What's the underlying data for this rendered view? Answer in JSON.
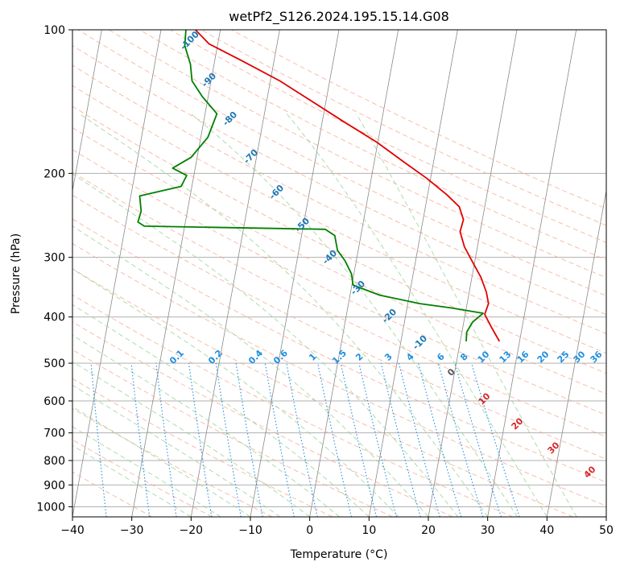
{
  "chart_data": {
    "type": "line",
    "title": "wetPf2_S126.2024.195.15.14.G08",
    "xlabel": "Temperature (°C)",
    "ylabel": "Pressure (hPa)",
    "x_scale": "skew-T (skewed temperature axis)",
    "y_scale": "log",
    "xlim": [
      -40,
      50
    ],
    "ylim": [
      1050,
      100
    ],
    "x_ticks": [
      -40,
      -30,
      -20,
      -10,
      0,
      10,
      20,
      30,
      40,
      50
    ],
    "y_ticks": [
      1000,
      900,
      800,
      700,
      600,
      500,
      400,
      300,
      200,
      100
    ],
    "grid": true,
    "colors": {
      "temperature": "#e00000",
      "dewpoint": "#008000",
      "isotherm": "#8a8a8a",
      "dry_adiabat": "#f6a58a",
      "moist_adiabat": "#8fcf8f",
      "mixing_ratio": "#1f8fe0",
      "isotherm_label": "#1f77b4",
      "zero_label": "#555555",
      "lower_label": "#d62728"
    },
    "series": [
      {
        "key": "temperature",
        "points": [
          [
            26.6,
            450
          ],
          [
            24.8,
            420
          ],
          [
            23.3,
            395
          ],
          [
            23.6,
            375
          ],
          [
            22.9,
            355
          ],
          [
            21.5,
            330
          ],
          [
            19.5,
            305
          ],
          [
            17.8,
            285
          ],
          [
            16.6,
            265
          ],
          [
            16.8,
            250
          ],
          [
            15.7,
            235
          ],
          [
            13.3,
            222
          ],
          [
            9.4,
            205
          ],
          [
            5.2,
            190
          ],
          [
            -0.2,
            172
          ],
          [
            -6.7,
            155
          ],
          [
            -12.9,
            140
          ],
          [
            -18.4,
            128
          ],
          [
            -25.5,
            116
          ],
          [
            -31.5,
            107
          ],
          [
            -34.2,
            100
          ]
        ]
      },
      {
        "key": "dewpoint",
        "points": [
          [
            21.0,
            450
          ],
          [
            20.8,
            430
          ],
          [
            21.5,
            410
          ],
          [
            23.0,
            393
          ],
          [
            17.5,
            383
          ],
          [
            12.0,
            375
          ],
          [
            5.0,
            360
          ],
          [
            0.2,
            343
          ],
          [
            -0.4,
            325
          ],
          [
            -1.9,
            305
          ],
          [
            -3.5,
            290
          ],
          [
            -4.4,
            270
          ],
          [
            -6.2,
            262
          ],
          [
            -36.8,
            258
          ],
          [
            -38.0,
            253
          ],
          [
            -37.8,
            240
          ],
          [
            -38.5,
            223
          ],
          [
            -31.8,
            213
          ],
          [
            -31.2,
            202
          ],
          [
            -33.8,
            195
          ],
          [
            -31.0,
            185
          ],
          [
            -28.8,
            168
          ],
          [
            -28.0,
            150
          ],
          [
            -31.0,
            138
          ],
          [
            -33.2,
            128
          ],
          [
            -34.0,
            118
          ],
          [
            -35.5,
            108
          ],
          [
            -35.8,
            100
          ]
        ]
      }
    ],
    "isotherm_labels": [
      "-100",
      "-90",
      "-80",
      "-70",
      "-60",
      "-50",
      "-40",
      "-30",
      "-20",
      "-10"
    ],
    "zero_label": "0",
    "lower_labels": [
      "10",
      "20",
      "30",
      "40"
    ],
    "mixing_ratio_labels": [
      "0.1",
      "0.2",
      "0.4",
      "0.6",
      "1",
      "1.5",
      "2",
      "3",
      "4",
      "6",
      "8",
      "10",
      "13",
      "16",
      "20",
      "25",
      "30",
      "36"
    ]
  }
}
